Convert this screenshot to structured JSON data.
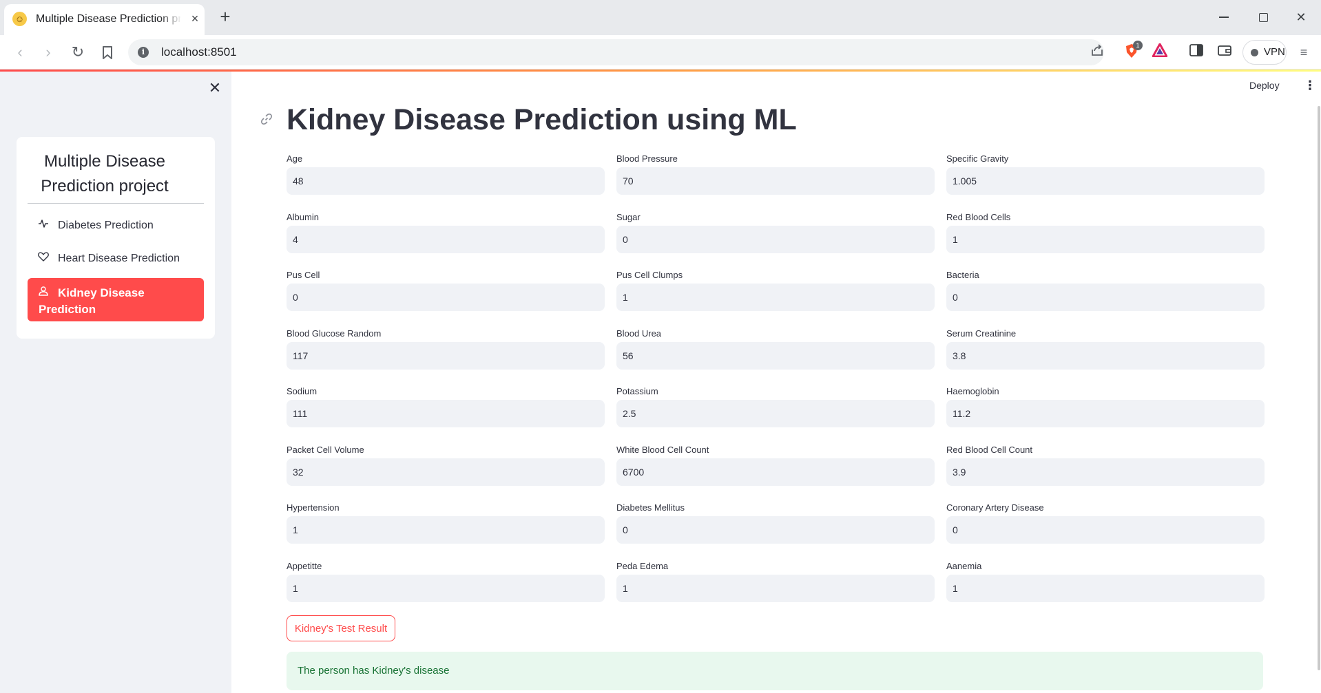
{
  "browser": {
    "tab_title": "Multiple Disease Prediction project",
    "url": "localhost:8501",
    "vpn_label": "VPN",
    "brave_badge": "1"
  },
  "sidebar": {
    "title": "Multiple Disease Prediction project",
    "items": [
      {
        "label": "Diabetes Prediction",
        "icon": "activity-icon",
        "active": false
      },
      {
        "label": "Heart Disease Prediction",
        "icon": "heart-icon",
        "active": false
      },
      {
        "label": "Kidney Disease Prediction",
        "icon": "person-icon",
        "active": true
      }
    ],
    "active_color": "#ff4b4b"
  },
  "header": {
    "deploy_label": "Deploy"
  },
  "main": {
    "title": "Kidney Disease Prediction using ML",
    "fields": [
      {
        "label": "Age",
        "value": "48"
      },
      {
        "label": "Blood Pressure",
        "value": "70"
      },
      {
        "label": "Specific Gravity",
        "value": "1.005"
      },
      {
        "label": "Albumin",
        "value": "4"
      },
      {
        "label": "Sugar",
        "value": "0"
      },
      {
        "label": "Red Blood Cells",
        "value": "1"
      },
      {
        "label": "Pus Cell",
        "value": "0"
      },
      {
        "label": "Pus Cell Clumps",
        "value": "1"
      },
      {
        "label": "Bacteria",
        "value": "0"
      },
      {
        "label": "Blood Glucose Random",
        "value": "117"
      },
      {
        "label": "Blood Urea",
        "value": "56"
      },
      {
        "label": "Serum Creatinine",
        "value": "3.8"
      },
      {
        "label": "Sodium",
        "value": "111"
      },
      {
        "label": "Potassium",
        "value": "2.5"
      },
      {
        "label": "Haemoglobin",
        "value": "11.2"
      },
      {
        "label": "Packet Cell Volume",
        "value": "32"
      },
      {
        "label": "White Blood Cell Count",
        "value": "6700"
      },
      {
        "label": "Red Blood Cell Count",
        "value": "3.9"
      },
      {
        "label": "Hypertension",
        "value": "1"
      },
      {
        "label": "Diabetes Mellitus",
        "value": "0"
      },
      {
        "label": "Coronary Artery Disease",
        "value": "0"
      },
      {
        "label": "Appetitte",
        "value": "1"
      },
      {
        "label": "Peda Edema",
        "value": "1"
      },
      {
        "label": "Aanemia",
        "value": "1"
      }
    ],
    "button_label": "Kidney's Test Result",
    "result_text": "The person has Kidney's disease",
    "accent_color": "#ff4b4b",
    "success_color": "#177233"
  }
}
